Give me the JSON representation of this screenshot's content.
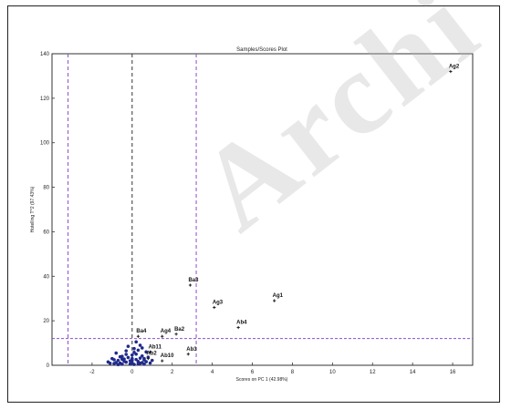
{
  "watermark": "Archi",
  "colors": {
    "frame": "#222222",
    "axes": "#333333",
    "limit_lines": "#8a4fc9",
    "center_lines": "#333333",
    "points_main": "#1f2a8c",
    "points_flagged": "#222222"
  },
  "chart_data": {
    "type": "scatter",
    "title": "Samples/Scores Plot",
    "xlabel": "Scores on PC 1 (42.98%)",
    "ylabel": "Hotelling T^2 (97.43%)",
    "xlim": [
      -4,
      17
    ],
    "ylim": [
      0,
      140
    ],
    "xticks": [
      -2,
      0,
      2,
      4,
      6,
      8,
      10,
      12,
      14,
      16
    ],
    "xtick_labels": [
      "-2",
      "0",
      "2",
      "4",
      "6",
      "8",
      "10",
      "12",
      "14",
      "16"
    ],
    "yticks": [
      0,
      20,
      40,
      60,
      80,
      100,
      120,
      140
    ],
    "ytick_labels": [
      "0",
      "20",
      "40",
      "60",
      "80",
      "100",
      "120",
      "140"
    ],
    "grid": false,
    "reference_lines": {
      "vertical_limits": [
        -3.2,
        3.2
      ],
      "vertical_center": [
        0
      ],
      "horizontal_limit": 12
    },
    "labeled_points": [
      {
        "label": "Ag2",
        "x": 15.9,
        "y": 132
      },
      {
        "label": "Ba3",
        "x": 2.9,
        "y": 36
      },
      {
        "label": "Ag1",
        "x": 7.1,
        "y": 29
      },
      {
        "label": "Ag3",
        "x": 4.1,
        "y": 26
      },
      {
        "label": "Ab4",
        "x": 5.3,
        "y": 17
      },
      {
        "label": "Ba4",
        "x": 0.3,
        "y": 13
      },
      {
        "label": "Ag4",
        "x": 1.5,
        "y": 13
      },
      {
        "label": "Ba2",
        "x": 2.2,
        "y": 14
      },
      {
        "label": "Ab3",
        "x": 2.8,
        "y": 5
      },
      {
        "label": "Ab11",
        "x": 0.9,
        "y": 6
      },
      {
        "label": "Ab10",
        "x": 1.5,
        "y": 2
      },
      {
        "label": "Ab2",
        "x": 0.8,
        "y": 3
      }
    ],
    "cluster_points": [
      {
        "x": -1.2,
        "y": 1.5
      },
      {
        "x": -1.0,
        "y": 3.0
      },
      {
        "x": -0.9,
        "y": 0.8
      },
      {
        "x": -0.8,
        "y": 5.5
      },
      {
        "x": -0.7,
        "y": 2.2
      },
      {
        "x": -0.6,
        "y": 1.0
      },
      {
        "x": -0.5,
        "y": 4.0
      },
      {
        "x": -0.5,
        "y": 0.5
      },
      {
        "x": -0.4,
        "y": 2.8
      },
      {
        "x": -0.3,
        "y": 6.5
      },
      {
        "x": -0.3,
        "y": 1.4
      },
      {
        "x": -0.2,
        "y": 3.5
      },
      {
        "x": -0.1,
        "y": 0.6
      },
      {
        "x": -0.1,
        "y": 2.0
      },
      {
        "x": 0.0,
        "y": 4.6
      },
      {
        "x": 0.0,
        "y": 1.1
      },
      {
        "x": 0.1,
        "y": 7.5
      },
      {
        "x": 0.1,
        "y": 0.4
      },
      {
        "x": 0.2,
        "y": 2.6
      },
      {
        "x": 0.2,
        "y": 5.0
      },
      {
        "x": 0.3,
        "y": 1.7
      },
      {
        "x": 0.3,
        "y": 0.7
      },
      {
        "x": 0.4,
        "y": 3.2
      },
      {
        "x": 0.4,
        "y": 9.0
      },
      {
        "x": 0.5,
        "y": 1.2
      },
      {
        "x": 0.5,
        "y": 4.2
      },
      {
        "x": 0.6,
        "y": 2.4
      },
      {
        "x": 0.6,
        "y": 0.5
      },
      {
        "x": 0.7,
        "y": 6.0
      },
      {
        "x": 0.7,
        "y": 1.6
      },
      {
        "x": -0.6,
        "y": 3.8
      },
      {
        "x": -0.9,
        "y": 2.5
      },
      {
        "x": -0.2,
        "y": 8.5
      },
      {
        "x": 0.0,
        "y": 3.0
      },
      {
        "x": 0.3,
        "y": 6.8
      },
      {
        "x": -0.4,
        "y": 1.8
      },
      {
        "x": 0.8,
        "y": 3.6
      },
      {
        "x": 0.9,
        "y": 1.0
      },
      {
        "x": -1.1,
        "y": 0.9
      },
      {
        "x": -0.7,
        "y": 0.3
      },
      {
        "x": 0.2,
        "y": 10.5
      },
      {
        "x": 0.5,
        "y": 7.8
      },
      {
        "x": -0.3,
        "y": 4.9
      },
      {
        "x": 0.1,
        "y": 5.8
      },
      {
        "x": 1.0,
        "y": 2.2
      },
      {
        "x": -0.8,
        "y": 1.2
      },
      {
        "x": 0.4,
        "y": 0.9
      },
      {
        "x": 0.6,
        "y": 3.0
      },
      {
        "x": -0.5,
        "y": 2.7
      },
      {
        "x": 0.0,
        "y": 2.2
      }
    ]
  }
}
